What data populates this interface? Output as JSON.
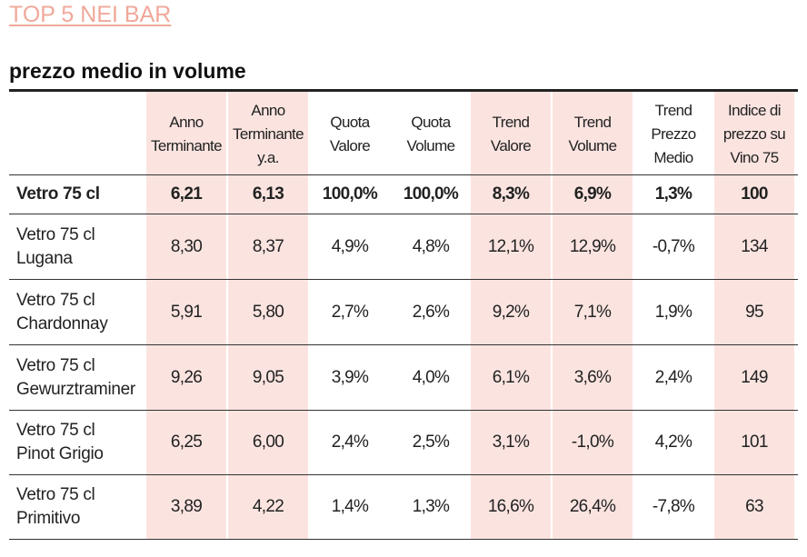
{
  "title": "TOP 5 NEI BAR",
  "subtitle": "prezzo medio in volume",
  "chart_data": {
    "type": "table",
    "columns": [
      "Anno Terminante",
      "Anno Terminante y.a.",
      "Quota Valore",
      "Quota Volume",
      "Trend Valore",
      "Trend Volume",
      "Trend Prezzo Medio",
      "Indice di prezzo su Vino 75"
    ],
    "column_headers": [
      "Anno\nTerminante",
      "Anno\nTerminante\ny.a.",
      "Quota\nValore",
      "Quota\nVolume",
      "Trend\nValore",
      "Trend\nVolume",
      "Trend\nPrezzo\nMedio",
      "Indice di\nprezzo su\nVino 75"
    ],
    "highlighted_columns": [
      0,
      1,
      4,
      5,
      7
    ],
    "rows": [
      {
        "label": "Vetro 75 cl",
        "bold": true,
        "values": [
          "6,21",
          "6,13",
          "100,0%",
          "100,0%",
          "8,3%",
          "6,9%",
          "1,3%",
          "100"
        ]
      },
      {
        "label": "Vetro 75 cl\nLugana",
        "bold": false,
        "values": [
          "8,30",
          "8,37",
          "4,9%",
          "4,8%",
          "12,1%",
          "12,9%",
          "-0,7%",
          "134"
        ]
      },
      {
        "label": "Vetro 75 cl\nChardonnay",
        "bold": false,
        "values": [
          "5,91",
          "5,80",
          "2,7%",
          "2,6%",
          "9,2%",
          "7,1%",
          "1,9%",
          "95"
        ]
      },
      {
        "label": "Vetro 75 cl\nGewurztraminer",
        "bold": false,
        "values": [
          "9,26",
          "9,05",
          "3,9%",
          "4,0%",
          "6,1%",
          "3,6%",
          "2,4%",
          "149"
        ]
      },
      {
        "label": "Vetro 75 cl\nPinot Grigio",
        "bold": false,
        "values": [
          "6,25",
          "6,00",
          "2,4%",
          "2,5%",
          "3,1%",
          "-1,0%",
          "4,2%",
          "101"
        ]
      },
      {
        "label": "Vetro 75 cl\nPrimitivo",
        "bold": false,
        "values": [
          "3,89",
          "4,22",
          "1,4%",
          "1,3%",
          "16,6%",
          "26,4%",
          "-7,8%",
          "63"
        ]
      }
    ]
  }
}
